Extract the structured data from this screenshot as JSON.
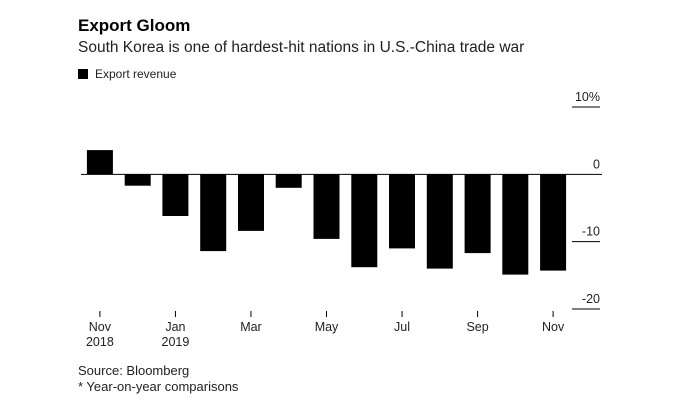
{
  "header": {
    "title": "Export Gloom",
    "subtitle": "South Korea is one of hardest-hit nations in U.S.-China trade war"
  },
  "legend": {
    "label": "Export revenue",
    "color": "#000000"
  },
  "footer": {
    "source": "Source: Bloomberg",
    "note": "* Year-on-year comparisons"
  },
  "chart_data": {
    "type": "bar",
    "title": "Export Gloom",
    "subtitle": "South Korea is one of hardest-hit nations in U.S.-China trade war",
    "categories": [
      "Nov 2018",
      "Dec 2018",
      "Jan 2019",
      "Feb 2019",
      "Mar 2019",
      "Apr 2019",
      "May 2019",
      "Jun 2019",
      "Jul 2019",
      "Aug 2019",
      "Sep 2019",
      "Oct 2019",
      "Nov 2019"
    ],
    "series": [
      {
        "name": "Export revenue",
        "color": "#000000",
        "values": [
          3.6,
          -1.7,
          -6.2,
          -11.4,
          -8.4,
          -2.0,
          -9.6,
          -13.8,
          -11.0,
          -14.0,
          -11.7,
          -14.9,
          -14.3
        ]
      }
    ],
    "x_tick_labels": [
      {
        "index": 0,
        "line1": "Nov",
        "line2": "2018"
      },
      {
        "index": 2,
        "line1": "Jan",
        "line2": "2019"
      },
      {
        "index": 4,
        "line1": "Mar",
        "line2": ""
      },
      {
        "index": 6,
        "line1": "May",
        "line2": ""
      },
      {
        "index": 8,
        "line1": "Jul",
        "line2": ""
      },
      {
        "index": 10,
        "line1": "Sep",
        "line2": ""
      },
      {
        "index": 12,
        "line1": "Nov",
        "line2": ""
      }
    ],
    "y_ticks": [
      {
        "value": 10,
        "label": "10%"
      },
      {
        "value": 0,
        "label": "0"
      },
      {
        "value": -10,
        "label": "-10"
      },
      {
        "value": -20,
        "label": "-20"
      }
    ],
    "ylim": [
      -20,
      10
    ],
    "axis_side": "right",
    "grid": false,
    "legend_position": "top-left"
  }
}
